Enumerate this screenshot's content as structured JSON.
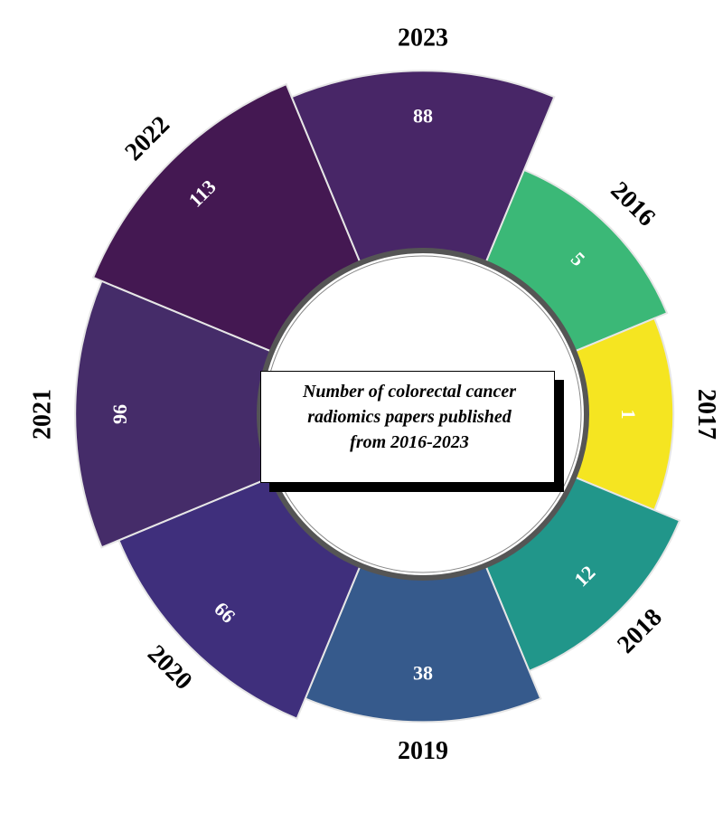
{
  "chart_data": {
    "type": "radial-bar",
    "title": "Number of colorectal cancer\nradiomics papers published\nfrom 2016-2023",
    "categories": [
      "2016",
      "2017",
      "2018",
      "2019",
      "2020",
      "2021",
      "2022",
      "2023"
    ],
    "values": [
      5,
      1,
      12,
      38,
      66,
      96,
      113,
      88
    ],
    "colors": [
      "#3bb877",
      "#f5e521",
      "#21968a",
      "#365a8c",
      "#3f2f7c",
      "#452c69",
      "#441852",
      "#482667"
    ],
    "legend": "none"
  }
}
